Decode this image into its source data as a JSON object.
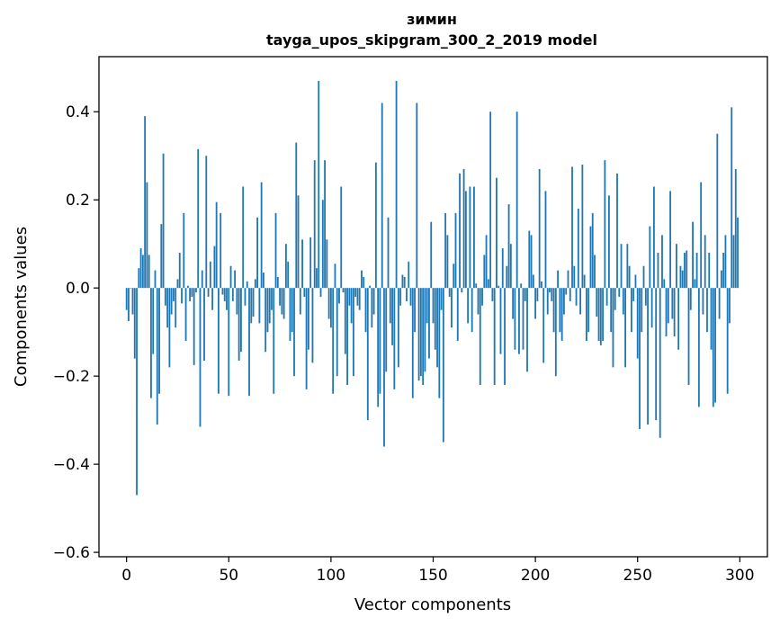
{
  "chart_data": {
    "type": "bar",
    "title": "зимин",
    "subtitle": "tayga_upos_skipgram_300_2_2019 model",
    "xlabel": "Vector components",
    "ylabel": "Components values",
    "xlim": [
      -13.5,
      313.5
    ],
    "ylim": [
      -0.61,
      0.525
    ],
    "xticks": [
      0,
      50,
      100,
      150,
      200,
      250,
      300
    ],
    "xtick_labels": [
      "0",
      "50",
      "100",
      "150",
      "200",
      "250",
      "300"
    ],
    "yticks": [
      -0.6,
      -0.4,
      -0.2,
      0.0,
      0.2,
      0.4
    ],
    "ytick_labels": [
      "−0.6",
      "−0.4",
      "−0.2",
      "0.0",
      "0.2",
      "0.4"
    ],
    "bar_color": "#1f77b4",
    "series": [
      {
        "name": "зимин",
        "values": [
          -0.05,
          -0.075,
          0.0,
          -0.06,
          -0.16,
          -0.47,
          0.045,
          0.09,
          0.075,
          0.39,
          0.24,
          0.075,
          -0.25,
          -0.15,
          0.04,
          -0.31,
          -0.24,
          0.145,
          0.305,
          -0.04,
          -0.09,
          -0.18,
          -0.06,
          -0.03,
          -0.09,
          0.02,
          0.08,
          -0.035,
          0.17,
          -0.12,
          0.005,
          -0.03,
          -0.02,
          -0.175,
          -0.01,
          0.315,
          -0.315,
          0.04,
          -0.165,
          0.3,
          -0.02,
          0.06,
          -0.05,
          0.095,
          0.195,
          -0.24,
          0.17,
          -0.015,
          -0.03,
          -0.05,
          -0.245,
          0.05,
          -0.03,
          0.04,
          -0.06,
          -0.165,
          -0.145,
          0.23,
          -0.04,
          0.015,
          -0.245,
          -0.08,
          -0.065,
          0.02,
          0.16,
          -0.08,
          0.24,
          0.035,
          -0.145,
          -0.1,
          -0.08,
          -0.05,
          -0.24,
          0.17,
          0.025,
          -0.04,
          -0.06,
          -0.07,
          0.1,
          0.06,
          -0.12,
          -0.1,
          -0.2,
          0.33,
          0.21,
          -0.06,
          0.11,
          -0.02,
          -0.23,
          -0.14,
          0.115,
          -0.17,
          0.29,
          0.045,
          0.47,
          -0.02,
          0.2,
          0.29,
          0.11,
          -0.07,
          -0.09,
          -0.24,
          0.055,
          -0.2,
          -0.035,
          0.23,
          -0.01,
          -0.15,
          -0.22,
          -0.04,
          -0.08,
          -0.2,
          -0.02,
          -0.04,
          -0.05,
          0.04,
          0.025,
          -0.1,
          -0.3,
          0.005,
          -0.09,
          -0.06,
          0.285,
          -0.27,
          -0.24,
          0.42,
          -0.36,
          -0.19,
          0.16,
          -0.08,
          -0.13,
          -0.23,
          0.47,
          -0.18,
          -0.04,
          0.03,
          0.025,
          -0.03,
          0.06,
          -0.04,
          -0.25,
          -0.1,
          0.42,
          -0.21,
          -0.2,
          -0.22,
          -0.19,
          -0.08,
          -0.16,
          0.15,
          -0.08,
          -0.14,
          -0.18,
          -0.25,
          -0.05,
          -0.35,
          0.17,
          0.12,
          -0.02,
          -0.09,
          0.055,
          0.17,
          -0.12,
          0.26,
          -0.01,
          0.27,
          0.22,
          -0.08,
          0.23,
          -0.1,
          0.23,
          0.01,
          -0.06,
          -0.22,
          -0.04,
          0.075,
          0.12,
          0.02,
          0.4,
          -0.03,
          -0.22,
          0.25,
          0.005,
          -0.15,
          0.09,
          -0.22,
          0.05,
          0.19,
          0.1,
          -0.07,
          -0.14,
          0.4,
          -0.15,
          0.01,
          -0.14,
          -0.03,
          -0.19,
          0.13,
          0.12,
          0.03,
          -0.07,
          -0.03,
          0.27,
          0.015,
          -0.17,
          0.22,
          -0.06,
          -0.01,
          -0.03,
          -0.1,
          -0.2,
          0.04,
          -0.1,
          -0.12,
          -0.06,
          -0.015,
          0.04,
          -0.03,
          0.275,
          0.05,
          -0.04,
          0.18,
          -0.06,
          0.28,
          0.03,
          -0.12,
          -0.1,
          0.14,
          0.17,
          0.075,
          -0.065,
          -0.12,
          -0.13,
          -0.12,
          0.29,
          -0.04,
          0.21,
          -0.1,
          -0.18,
          -0.05,
          0.26,
          -0.02,
          0.1,
          -0.06,
          -0.18,
          0.1,
          0.05,
          -0.1,
          -0.03,
          0.03,
          -0.16,
          -0.32,
          -0.1,
          0.05,
          -0.04,
          -0.31,
          0.14,
          -0.09,
          0.23,
          -0.3,
          0.08,
          -0.34,
          0.12,
          0.02,
          -0.11,
          -0.08,
          0.22,
          -0.07,
          -0.11,
          0.1,
          -0.14,
          0.05,
          0.04,
          0.08,
          0.085,
          -0.22,
          -0.05,
          0.15,
          0.02,
          0.08,
          -0.27,
          0.24,
          -0.06,
          0.12,
          -0.1,
          0.08,
          -0.14,
          -0.27,
          -0.26,
          0.35,
          -0.07,
          0.04,
          0.08,
          0.12,
          -0.24,
          -0.08,
          0.41,
          0.12,
          0.27,
          0.16
        ]
      }
    ]
  }
}
